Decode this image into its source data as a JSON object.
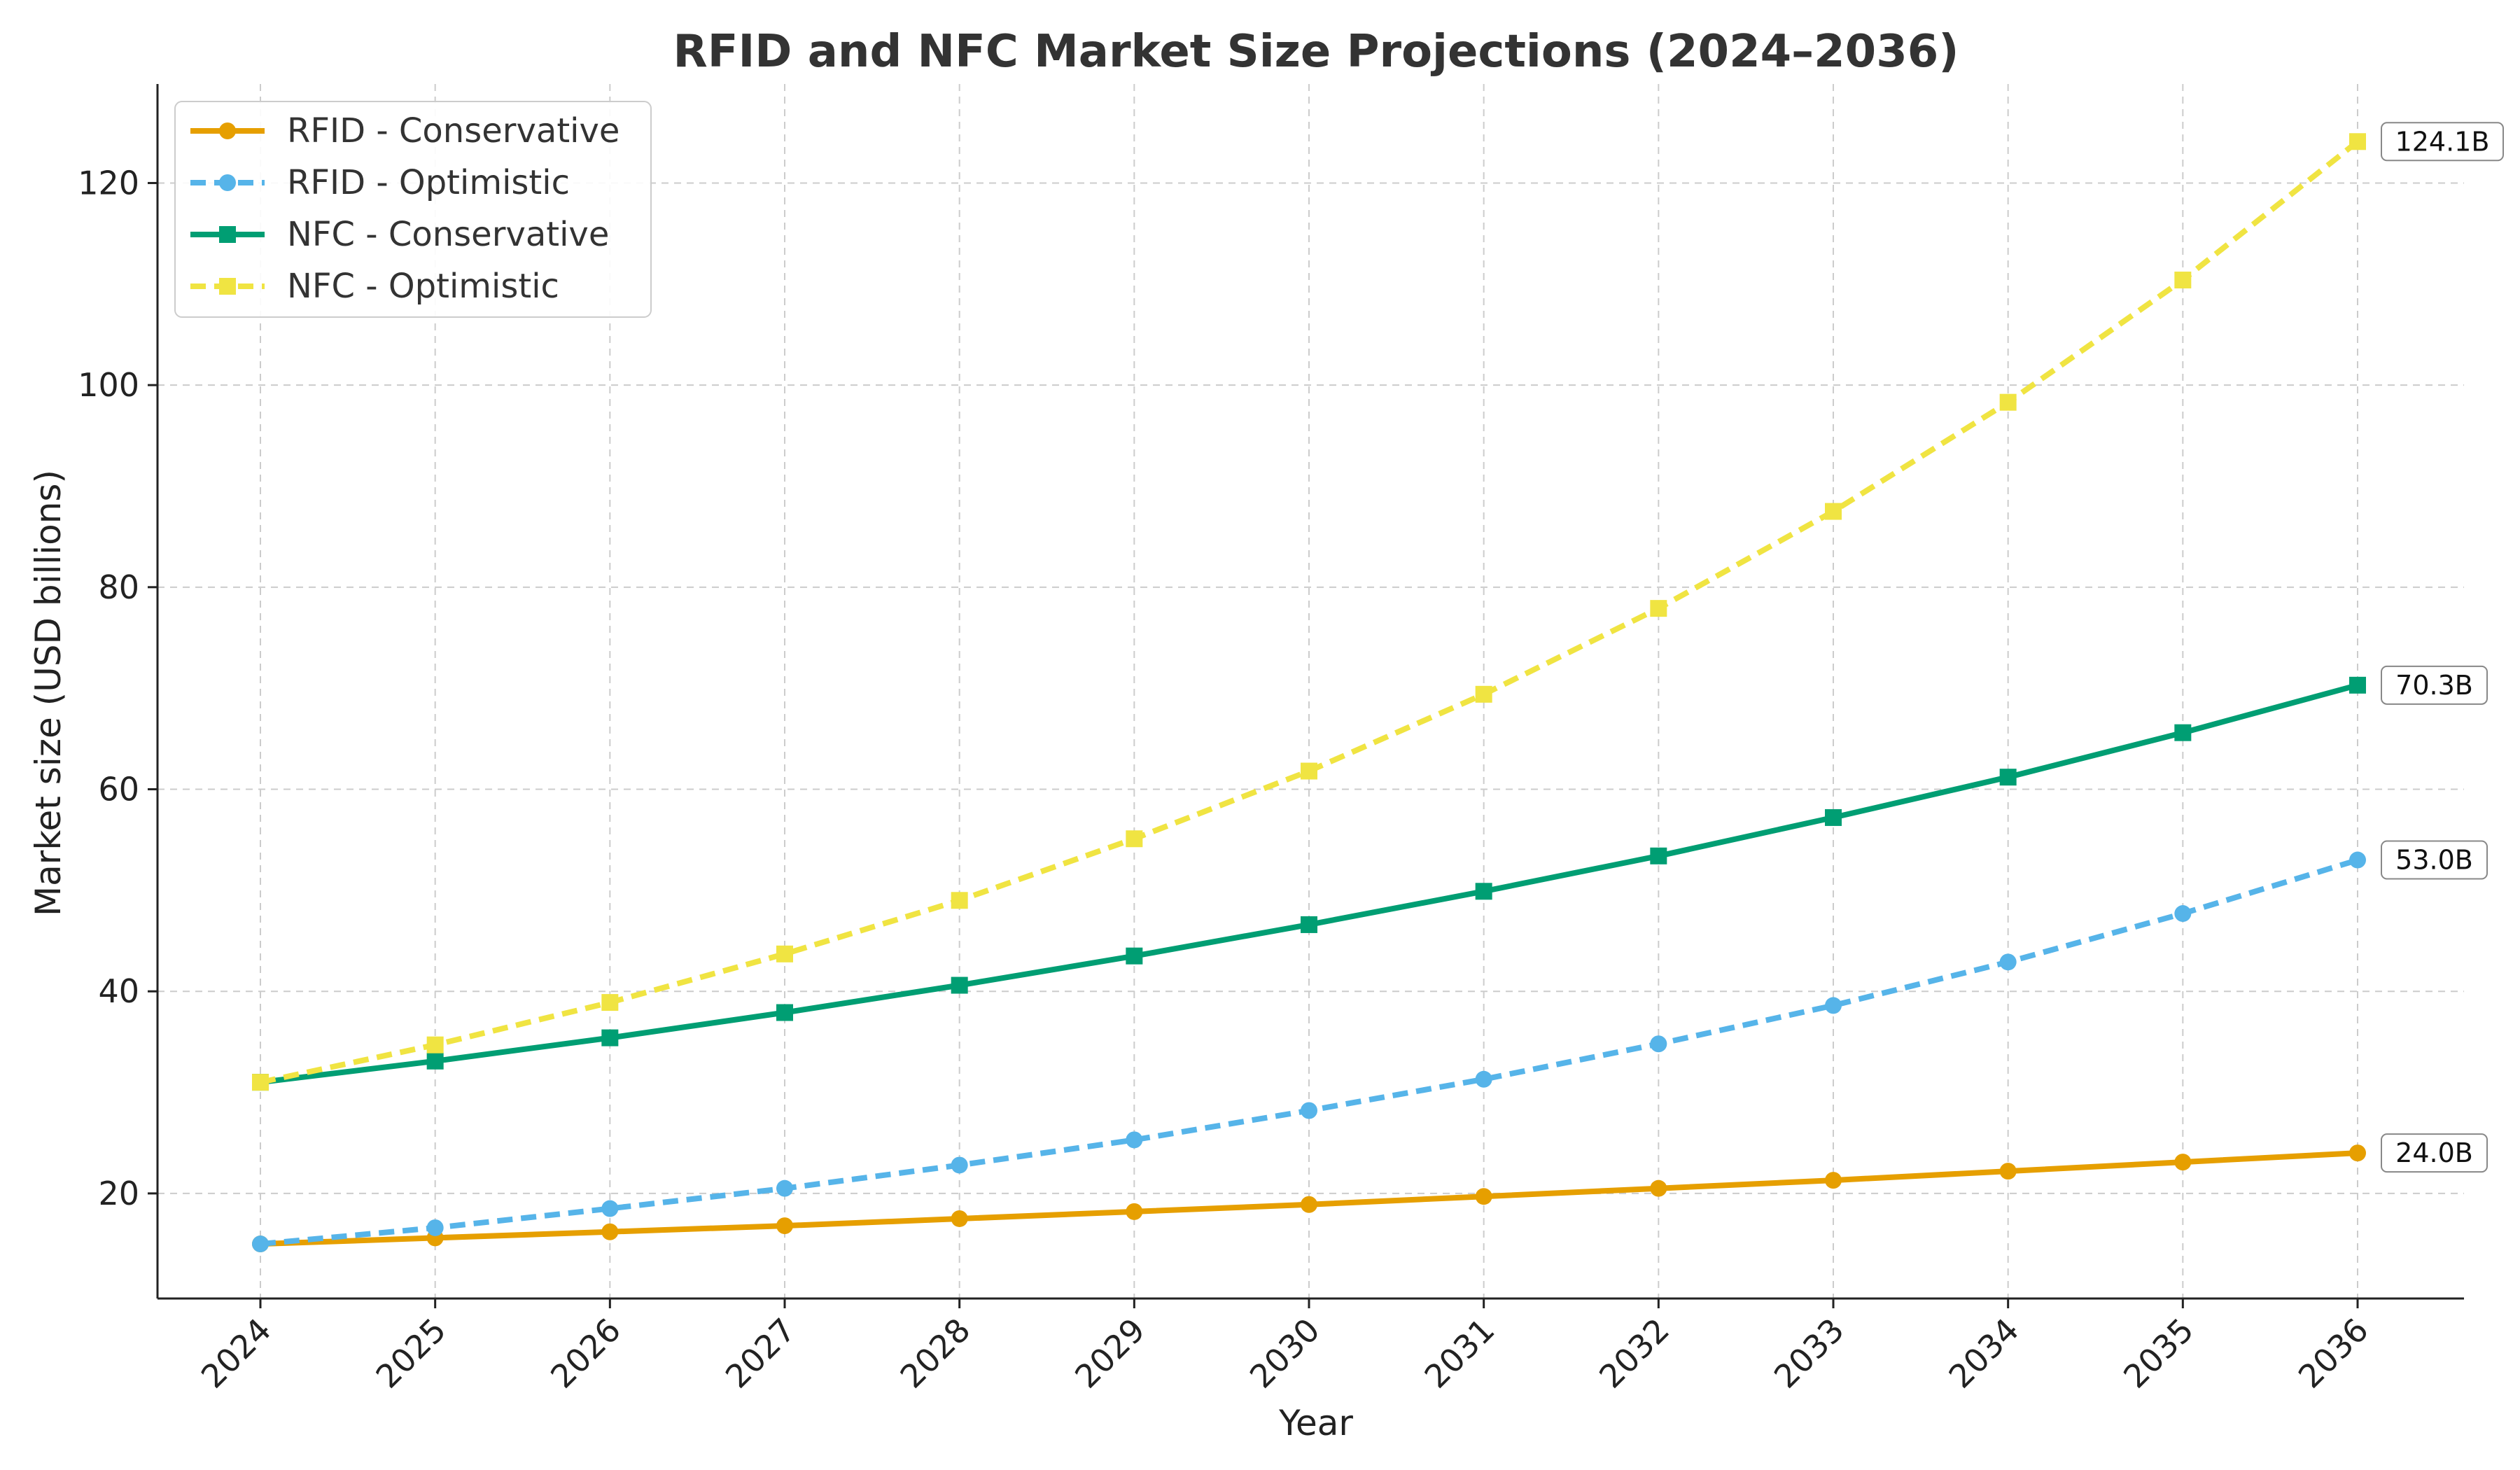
{
  "chart_data": {
    "type": "line",
    "title": "RFID and NFC Market Size Projections (2024–2036)",
    "xlabel": "Year",
    "ylabel": "Market size (USD billions)",
    "x": [
      2024,
      2025,
      2026,
      2027,
      2028,
      2029,
      2030,
      2031,
      2032,
      2033,
      2034,
      2035,
      2036
    ],
    "x_tick_labels": [
      "2024",
      "2025",
      "2026",
      "2027",
      "2028",
      "2029",
      "2030",
      "2031",
      "2032",
      "2033",
      "2034",
      "2035",
      "2036"
    ],
    "ylim": [
      9.6,
      129.8
    ],
    "y_ticks": [
      20,
      40,
      60,
      80,
      100,
      120
    ],
    "y_tick_labels": [
      "20",
      "40",
      "60",
      "80",
      "100",
      "120"
    ],
    "grid": true,
    "legend_position": "top-left",
    "series": [
      {
        "name": "RFID - Conservative",
        "color": "#E69F00",
        "line_style": "solid",
        "marker": "circle",
        "values": [
          15.0,
          15.6,
          16.2,
          16.8,
          17.5,
          18.2,
          18.9,
          19.7,
          20.5,
          21.3,
          22.2,
          23.1,
          24.0
        ],
        "end_label": "24.0B"
      },
      {
        "name": "RFID - Optimistic",
        "color": "#56B4E9",
        "line_style": "dashed",
        "marker": "circle",
        "values": [
          15.0,
          16.6,
          18.5,
          20.5,
          22.8,
          25.3,
          28.2,
          31.3,
          34.8,
          38.6,
          42.9,
          47.7,
          53.0
        ],
        "end_label": "53.0B"
      },
      {
        "name": "NFC - Conservative",
        "color": "#009E73",
        "line_style": "solid",
        "marker": "square",
        "values": [
          31.0,
          33.1,
          35.4,
          37.9,
          40.6,
          43.5,
          46.6,
          49.9,
          53.4,
          57.2,
          61.2,
          65.6,
          70.3
        ],
        "end_label": "70.3B"
      },
      {
        "name": "NFC - Optimistic",
        "color": "#F0E442",
        "line_style": "dashed",
        "marker": "square",
        "values": [
          31.0,
          34.7,
          38.9,
          43.7,
          49.0,
          55.1,
          61.8,
          69.4,
          77.9,
          87.5,
          98.3,
          110.4,
          124.1
        ],
        "end_label": "124.1B"
      }
    ]
  }
}
